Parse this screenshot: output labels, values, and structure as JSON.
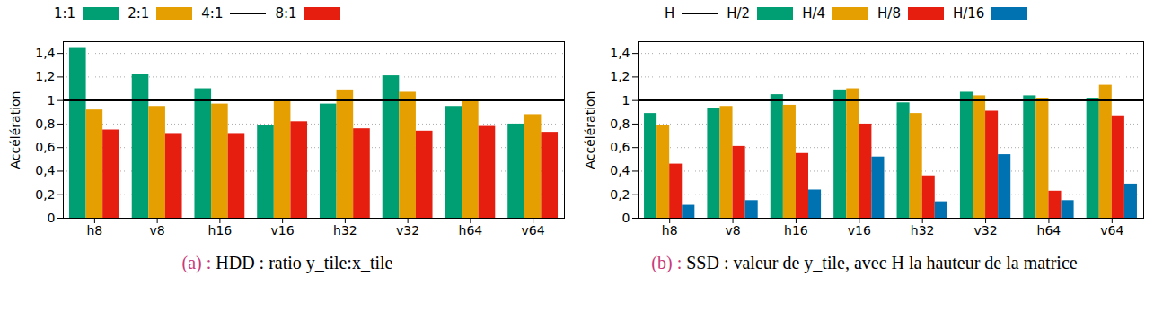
{
  "chart_data": [
    {
      "type": "bar",
      "y_label": "Accélération",
      "caption_label": "(a) :",
      "caption": "HDD : ratio y_tile:x_tile",
      "categories": [
        "h8",
        "v8",
        "h16",
        "v16",
        "h32",
        "v32",
        "h64",
        "v64"
      ],
      "series": [
        {
          "name": "1:1",
          "color": "#009e73",
          "values": [
            1.45,
            1.22,
            1.1,
            0.79,
            0.97,
            1.21,
            0.95,
            0.8
          ]
        },
        {
          "name": "2:1",
          "color": "#e69f00",
          "values": [
            0.92,
            0.95,
            0.97,
            0.99,
            1.09,
            1.07,
            1.01,
            0.88
          ]
        },
        {
          "name": "4:1",
          "type": "line",
          "color": "#000000",
          "values": [
            1,
            1,
            1,
            1,
            1,
            1,
            1,
            1
          ]
        },
        {
          "name": "8:1",
          "color": "#e51e10",
          "values": [
            0.75,
            0.72,
            0.72,
            0.82,
            0.76,
            0.74,
            0.78,
            0.73
          ]
        }
      ],
      "ylim": [
        0,
        1.5
      ],
      "yticks": [
        0,
        {
          "value": 0.2,
          "label": "0,2"
        },
        {
          "value": 0.4,
          "label": "0,4"
        },
        {
          "value": 0.6,
          "label": "0,6"
        },
        {
          "value": 0.8,
          "label": "0,8"
        },
        1,
        {
          "value": 1.2,
          "label": "1,2"
        },
        {
          "value": 1.4,
          "label": "1,4"
        }
      ],
      "grid": true,
      "legend": "top"
    },
    {
      "type": "bar",
      "y_label": "Accélération",
      "caption_label": "(b) :",
      "caption": "SSD : valeur de y_tile, avec H la hauteur de la matrice",
      "categories": [
        "h8",
        "v8",
        "h16",
        "v16",
        "h32",
        "v32",
        "h64",
        "v64"
      ],
      "series": [
        {
          "name": "H",
          "type": "line",
          "color": "#000000",
          "values": [
            1,
            1,
            1,
            1,
            1,
            1,
            1,
            1
          ]
        },
        {
          "name": "H/2",
          "color": "#009e73",
          "values": [
            0.89,
            0.93,
            1.05,
            1.09,
            0.98,
            1.07,
            1.04,
            1.02
          ]
        },
        {
          "name": "H/4",
          "color": "#e69f00",
          "values": [
            0.79,
            0.95,
            0.96,
            1.1,
            0.89,
            1.04,
            1.02,
            1.13
          ]
        },
        {
          "name": "H/8",
          "color": "#e51e10",
          "values": [
            0.46,
            0.61,
            0.55,
            0.8,
            0.36,
            0.91,
            0.23,
            0.87
          ]
        },
        {
          "name": "H/16",
          "color": "#0072b2",
          "values": [
            0.11,
            0.15,
            0.24,
            0.52,
            0.14,
            0.54,
            0.15,
            0.29
          ]
        }
      ],
      "ylim": [
        0,
        1.5
      ],
      "yticks": [
        0,
        {
          "value": 0.2,
          "label": "0,2"
        },
        {
          "value": 0.4,
          "label": "0,4"
        },
        {
          "value": 0.6,
          "label": "0,6"
        },
        {
          "value": 0.8,
          "label": "0,8"
        },
        1,
        {
          "value": 1.2,
          "label": "1,2"
        },
        {
          "value": 1.4,
          "label": "1,4"
        }
      ],
      "grid": true,
      "legend": "top"
    }
  ]
}
